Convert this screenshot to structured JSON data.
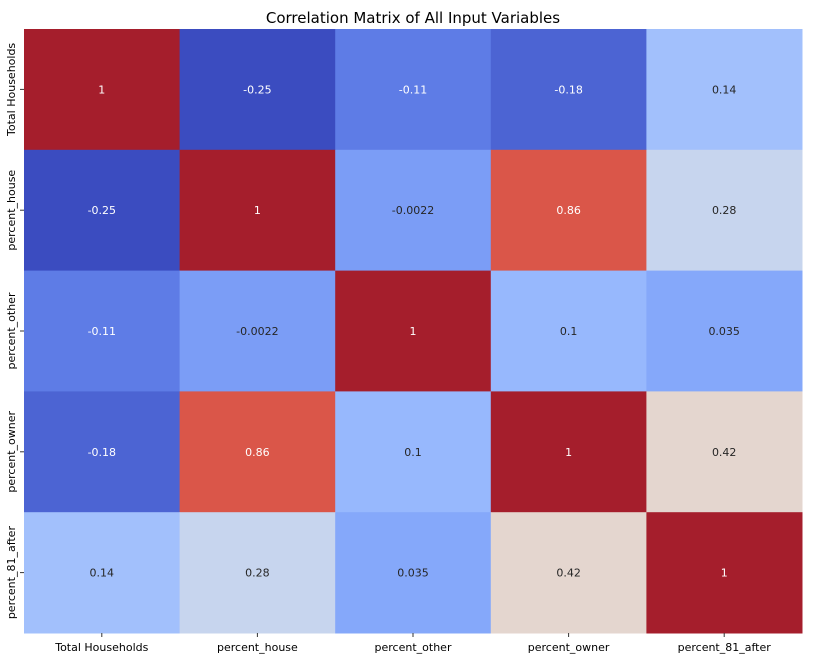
{
  "chart_data": {
    "type": "heatmap",
    "title": "Correlation Matrix of All Input Variables",
    "xlabel": "",
    "ylabel": "",
    "x_categories": [
      "Total Households",
      "percent_house",
      "percent_other",
      "percent_owner",
      "percent_81_after"
    ],
    "y_categories": [
      "Total Households",
      "percent_house",
      "percent_other",
      "percent_owner",
      "percent_81_after"
    ],
    "values": [
      [
        1,
        -0.25,
        -0.11,
        -0.18,
        0.14
      ],
      [
        -0.25,
        1,
        -0.0022,
        0.86,
        0.28
      ],
      [
        -0.11,
        -0.0022,
        1,
        0.1,
        0.035
      ],
      [
        -0.18,
        0.86,
        0.1,
        1,
        0.42
      ],
      [
        0.14,
        0.28,
        0.035,
        0.42,
        1
      ]
    ],
    "value_labels": [
      [
        "1",
        "-0.25",
        "-0.11",
        "-0.18",
        "0.14"
      ],
      [
        "-0.25",
        "1",
        "-0.0022",
        "0.86",
        "0.28"
      ],
      [
        "-0.11",
        "-0.0022",
        "1",
        "0.1",
        "0.035"
      ],
      [
        "-0.18",
        "0.86",
        "0.1",
        "1",
        "0.42"
      ],
      [
        "0.14",
        "0.28",
        "0.035",
        "0.42",
        "1"
      ]
    ],
    "colormap": "coolwarm",
    "color_range": [
      -0.25,
      1
    ],
    "colorbar": false,
    "annotated": true,
    "grid": false
  }
}
